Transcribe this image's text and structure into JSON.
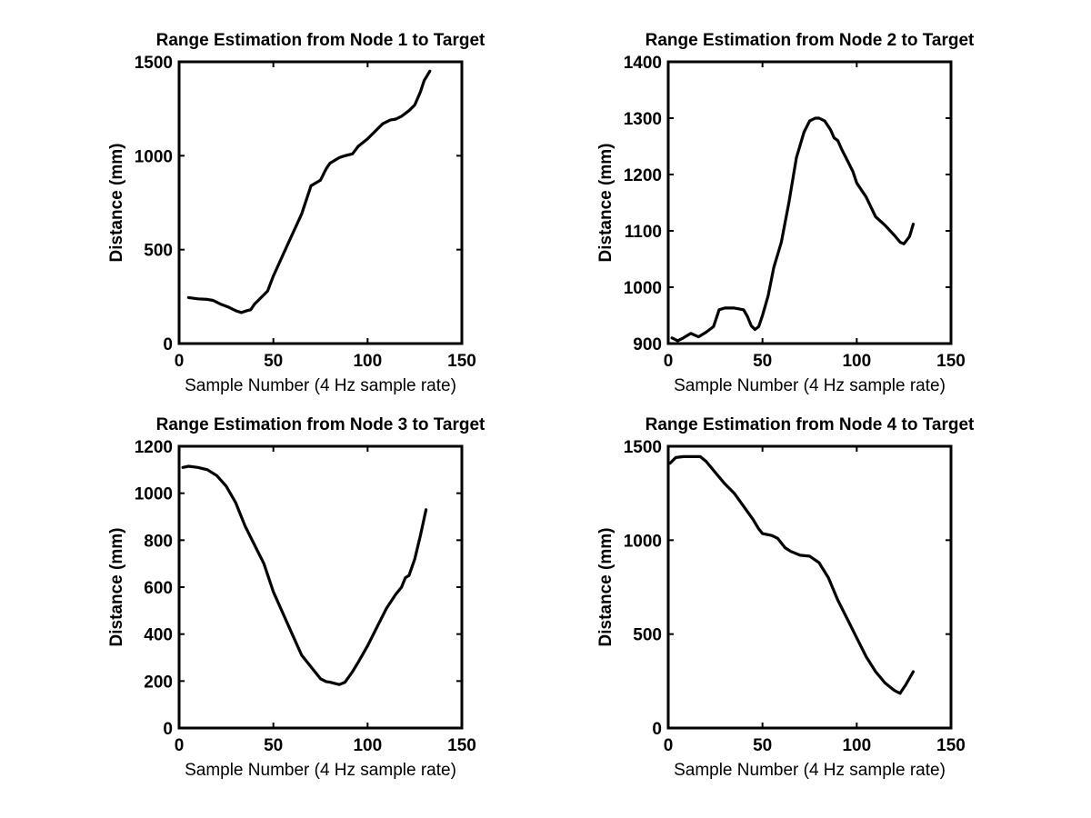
{
  "chart_data": [
    {
      "type": "line",
      "title": "Range Estimation from Node 1 to Target",
      "xlabel": "Sample Number (4 Hz sample rate)",
      "ylabel": "Distance (mm)",
      "xlim": [
        0,
        150
      ],
      "ylim": [
        0,
        1500
      ],
      "xticks": [
        0,
        50,
        100,
        150
      ],
      "yticks": [
        0,
        500,
        1000,
        1500
      ],
      "grid": false,
      "series": [
        {
          "x": [
            5,
            10,
            15,
            18,
            22,
            26,
            30,
            33,
            36,
            38,
            40,
            43,
            47,
            50,
            55,
            60,
            65,
            70,
            75,
            78,
            80,
            85,
            88,
            92,
            95,
            100,
            105,
            108,
            112,
            115,
            118,
            122,
            125,
            128,
            130,
            133
          ],
          "y": [
            245,
            238,
            235,
            230,
            210,
            195,
            175,
            165,
            175,
            180,
            210,
            240,
            280,
            360,
            470,
            580,
            690,
            840,
            870,
            930,
            960,
            990,
            1000,
            1010,
            1050,
            1090,
            1140,
            1170,
            1190,
            1195,
            1210,
            1240,
            1270,
            1340,
            1400,
            1450
          ]
        }
      ]
    },
    {
      "type": "line",
      "title": "Range Estimation from Node 2 to Target",
      "xlabel": "Sample Number (4 Hz sample rate)",
      "ylabel": "Distance (mm)",
      "xlim": [
        0,
        150
      ],
      "ylim": [
        900,
        1400
      ],
      "xticks": [
        0,
        50,
        100,
        150
      ],
      "yticks": [
        900,
        1000,
        1100,
        1200,
        1300,
        1400
      ],
      "grid": false,
      "series": [
        {
          "x": [
            2,
            5,
            8,
            12,
            16,
            20,
            24,
            27,
            30,
            35,
            40,
            42,
            44,
            46,
            48,
            50,
            53,
            56,
            60,
            64,
            68,
            72,
            75,
            78,
            80,
            83,
            86,
            88,
            90,
            92,
            95,
            98,
            100,
            105,
            110,
            115,
            120,
            123,
            125,
            128,
            130
          ],
          "y": [
            910,
            905,
            910,
            918,
            912,
            920,
            930,
            960,
            963,
            963,
            960,
            948,
            932,
            925,
            930,
            950,
            985,
            1035,
            1080,
            1150,
            1230,
            1275,
            1295,
            1300,
            1300,
            1295,
            1280,
            1265,
            1260,
            1245,
            1225,
            1205,
            1185,
            1160,
            1125,
            1110,
            1092,
            1080,
            1077,
            1090,
            1112
          ]
        }
      ]
    },
    {
      "type": "line",
      "title": "Range Estimation from Node 3 to Target",
      "xlabel": "Sample Number (4 Hz sample rate)",
      "ylabel": "Distance (mm)",
      "xlim": [
        0,
        150
      ],
      "ylim": [
        0,
        1200
      ],
      "xticks": [
        0,
        50,
        100,
        150
      ],
      "yticks": [
        0,
        200,
        400,
        600,
        800,
        1000,
        1200
      ],
      "grid": false,
      "series": [
        {
          "x": [
            2,
            5,
            10,
            15,
            20,
            25,
            30,
            35,
            40,
            45,
            50,
            55,
            60,
            65,
            70,
            75,
            78,
            80,
            85,
            88,
            92,
            95,
            100,
            105,
            110,
            115,
            118,
            120,
            122,
            125,
            128,
            131
          ],
          "y": [
            1110,
            1115,
            1110,
            1100,
            1075,
            1030,
            960,
            860,
            780,
            700,
            580,
            490,
            400,
            310,
            260,
            210,
            198,
            195,
            185,
            195,
            240,
            280,
            350,
            430,
            510,
            570,
            600,
            640,
            650,
            720,
            820,
            930
          ]
        }
      ]
    },
    {
      "type": "line",
      "title": "Range Estimation from Node 4 to Target",
      "xlabel": "Sample Number (4 Hz sample rate)",
      "ylabel": "Distance (mm)",
      "xlim": [
        0,
        150
      ],
      "ylim": [
        0,
        1500
      ],
      "xticks": [
        0,
        50,
        100,
        150
      ],
      "yticks": [
        0,
        500,
        1000,
        1500
      ],
      "grid": false,
      "series": [
        {
          "x": [
            1,
            4,
            8,
            12,
            17,
            20,
            25,
            30,
            35,
            40,
            45,
            48,
            50,
            55,
            58,
            62,
            65,
            70,
            75,
            80,
            85,
            90,
            95,
            100,
            105,
            110,
            115,
            120,
            123,
            126,
            130
          ],
          "y": [
            1410,
            1440,
            1445,
            1445,
            1445,
            1420,
            1360,
            1300,
            1250,
            1180,
            1110,
            1060,
            1035,
            1025,
            1010,
            960,
            940,
            920,
            915,
            880,
            800,
            680,
            580,
            480,
            380,
            300,
            240,
            200,
            185,
            230,
            300
          ]
        }
      ]
    }
  ]
}
